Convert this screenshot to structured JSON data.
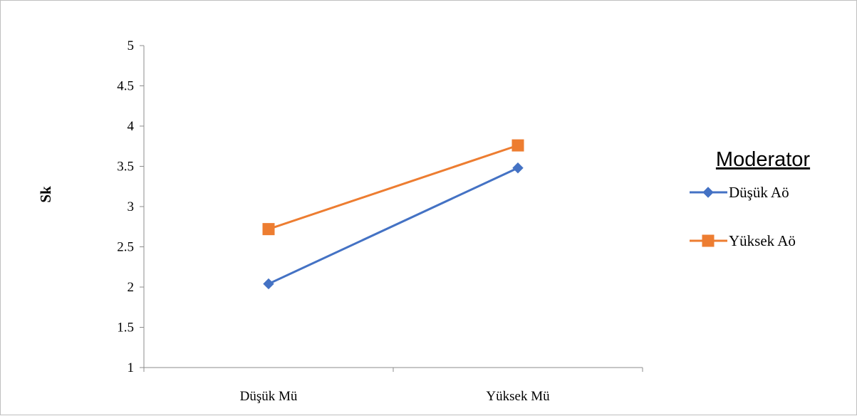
{
  "chart_data": {
    "type": "line",
    "categories": [
      "Düşük Mü",
      "Yüksek Mü"
    ],
    "series": [
      {
        "name": "Düşük Aö",
        "values": [
          2.04,
          3.48
        ],
        "color": "#4472c4",
        "marker": "diamond"
      },
      {
        "name": "Yüksek Aö",
        "values": [
          2.72,
          3.76
        ],
        "color": "#ed7d31",
        "marker": "square"
      }
    ],
    "ylabel": "Sk",
    "xlabel": "",
    "ylim": [
      1,
      5
    ],
    "yticks": [
      "1",
      "1.5",
      "2",
      "2.5",
      "3",
      "3.5",
      "4",
      "4.5",
      "5"
    ],
    "grid": false,
    "legend": {
      "title": "Moderator",
      "placement": "right"
    }
  }
}
